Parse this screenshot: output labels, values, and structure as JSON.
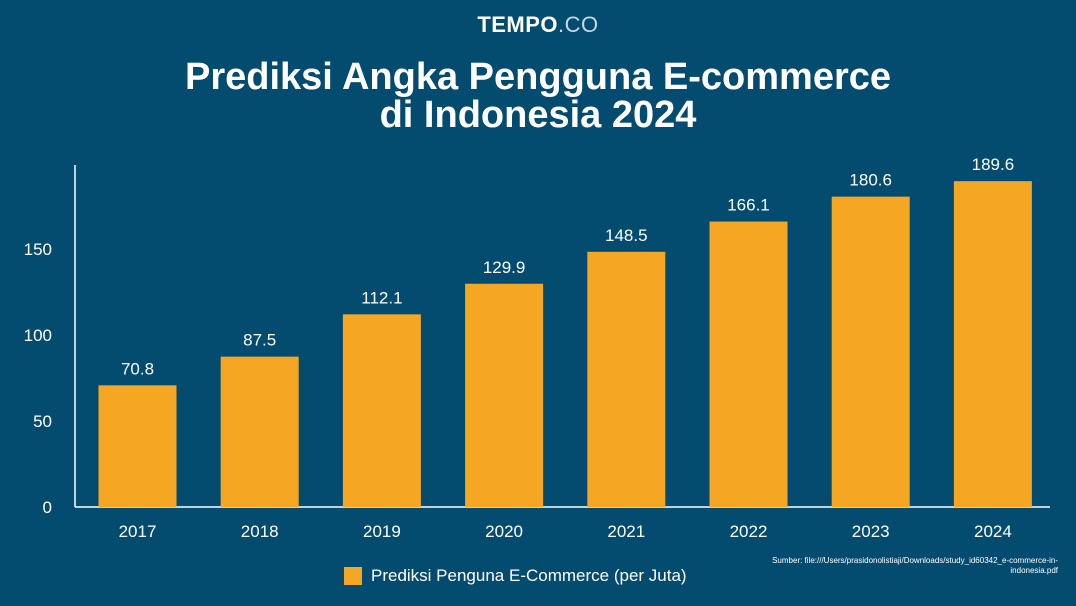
{
  "brand": {
    "main": "TEMPO",
    "suffix": ".CO"
  },
  "title_lines": [
    "Prediksi Angka Pengguna E-commerce",
    "di Indonesia 2024"
  ],
  "source": "Sumber: file:///Users/prasidonolistiaji/Downloads/study_id60342_e-commerce-in-indonesia.pdf",
  "colors": {
    "background": "#044b70",
    "bar": "#f5a623",
    "text": "#ffffff"
  },
  "chart_data": {
    "type": "bar",
    "title": "Prediksi Angka Pengguna E-commerce di Indonesia 2024",
    "categories": [
      "2017",
      "2018",
      "2019",
      "2020",
      "2021",
      "2022",
      "2023",
      "2024"
    ],
    "series": [
      {
        "name": "Prediksi Penguna E-Commerce (per Juta)",
        "values": [
          70.8,
          87.5,
          112.1,
          129.9,
          148.5,
          166.1,
          180.6,
          189.6
        ],
        "labels": [
          "70.8",
          "87.5",
          "112.1",
          "129.9",
          "148.5",
          "166.1",
          "180.6",
          "189.6"
        ]
      }
    ],
    "ylim": [
      0,
      199
    ],
    "yticks": [
      0,
      50,
      100,
      150
    ],
    "grid": false,
    "legend": "bottom-center"
  }
}
